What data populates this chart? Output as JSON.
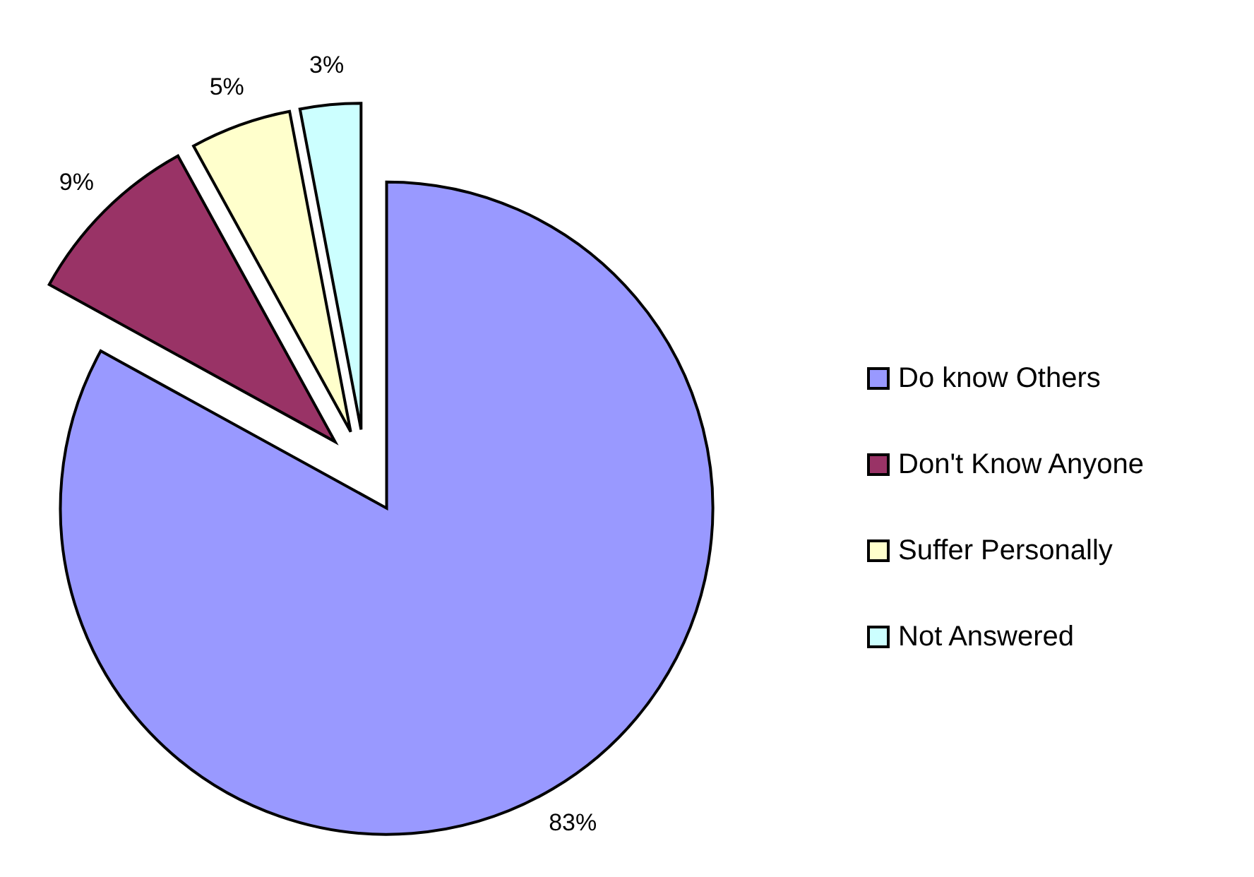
{
  "chart_data": {
    "type": "pie",
    "categories": [
      "Do know Others",
      "Don't Know Anyone",
      "Suffer Personally",
      "Not Answered"
    ],
    "values": [
      83,
      9,
      5,
      3
    ],
    "colors": [
      "#9999ff",
      "#993366",
      "#ffffcc",
      "#ccffff"
    ],
    "value_labels": [
      "83%",
      "9%",
      "5%",
      "3%"
    ],
    "legend": "right"
  }
}
